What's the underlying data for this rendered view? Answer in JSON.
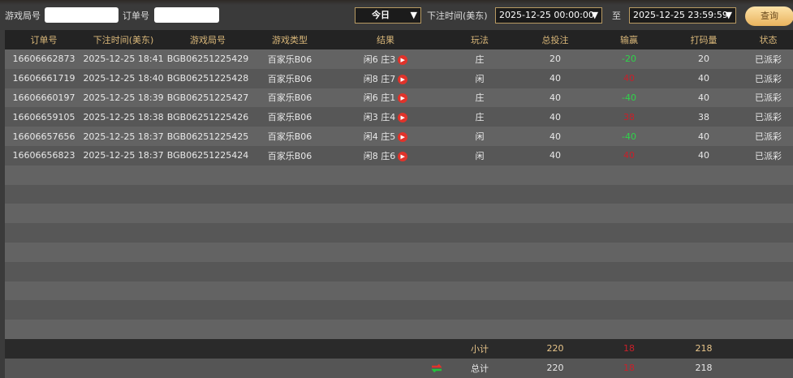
{
  "filters": {
    "game_round_label": "游戏局号",
    "game_round_value": "",
    "order_label": "订单号",
    "order_value": "",
    "period": "今日",
    "time_label": "下注时间(美东)",
    "start": "2025-12-25 00:00:00",
    "to_label": "至",
    "end": "2025-12-25 23:59:59",
    "query_button": "查询"
  },
  "table": {
    "headers": [
      "订单号",
      "下注时间(美东)",
      "游戏局号",
      "游戏类型",
      "结果",
      "玩法",
      "总投注",
      "输赢",
      "打码量",
      "状态"
    ],
    "rows": [
      [
        "16606662873",
        "2025-12-25 18:41",
        "BGB06251225429",
        "百家乐B06",
        "闲6 庄3",
        "庄",
        "20",
        "-20",
        "20",
        "已派彩"
      ],
      [
        "16606661719",
        "2025-12-25 18:40",
        "BGB06251225428",
        "百家乐B06",
        "闲8 庄7",
        "闲",
        "40",
        "40",
        "40",
        "已派彩"
      ],
      [
        "16606660197",
        "2025-12-25 18:39",
        "BGB06251225427",
        "百家乐B06",
        "闲6 庄1",
        "庄",
        "40",
        "-40",
        "40",
        "已派彩"
      ],
      [
        "16606659105",
        "2025-12-25 18:38",
        "BGB06251225426",
        "百家乐B06",
        "闲3 庄4",
        "庄",
        "40",
        "38",
        "38",
        "已派彩"
      ],
      [
        "16606657656",
        "2025-12-25 18:37",
        "BGB06251225425",
        "百家乐B06",
        "闲4 庄5",
        "闲",
        "40",
        "-40",
        "40",
        "已派彩"
      ],
      [
        "16606656823",
        "2025-12-25 18:37",
        "BGB06251225424",
        "百家乐B06",
        "闲8 庄6",
        "闲",
        "40",
        "40",
        "40",
        "已派彩"
      ]
    ],
    "subtotal": {
      "label": "小计",
      "bet": "220",
      "win": "18",
      "valid": "218"
    },
    "total": {
      "label": "总计",
      "bet": "220",
      "win": "18",
      "valid": "218"
    }
  },
  "colors": {
    "header_text": "#d9b779",
    "win": "#c8202a",
    "loss": "#2fd34a",
    "accent": "#e9b45e"
  }
}
